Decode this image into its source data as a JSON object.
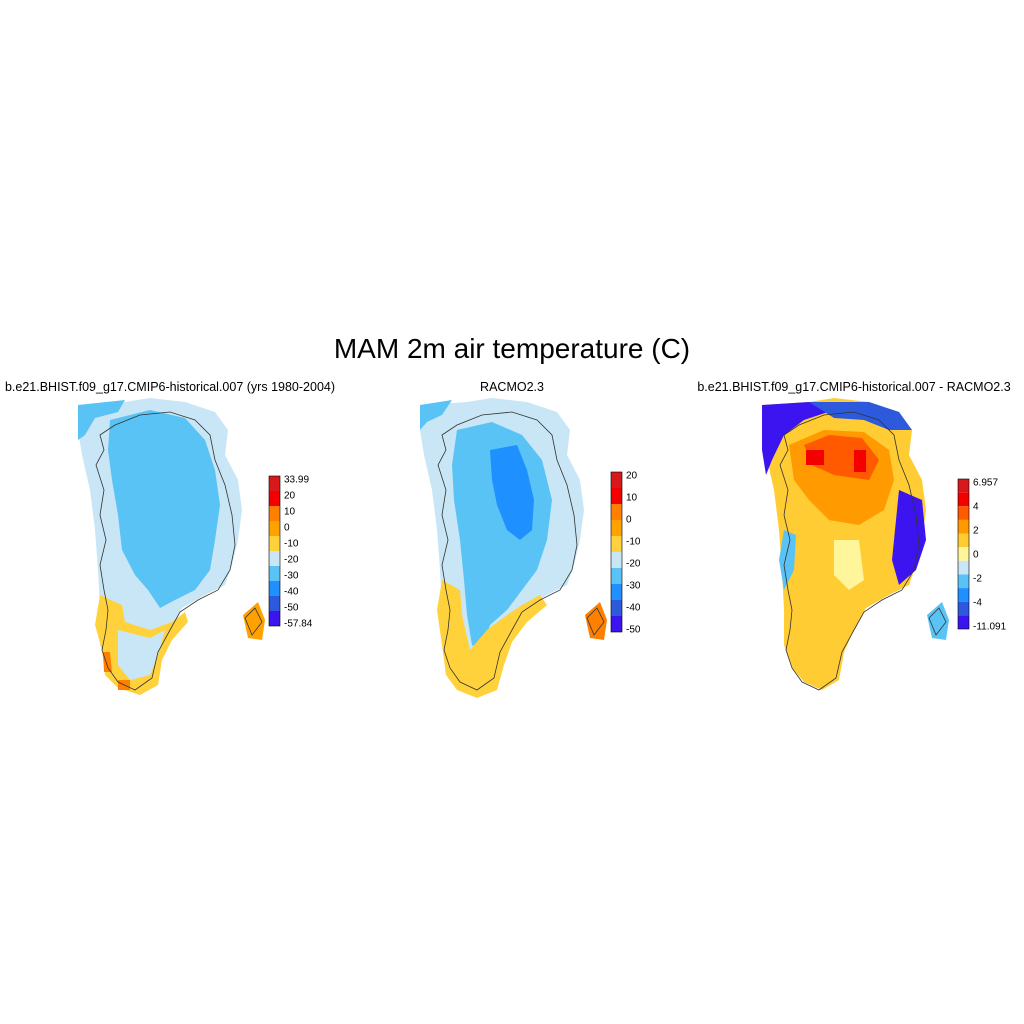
{
  "title": "MAM 2m air temperature (C)",
  "panels": [
    {
      "title": "b.e21.BHIST.f09_g17.CMIP6-historical.007 (yrs 1980-2004)",
      "colorbar": {
        "labels": [
          "33.99",
          "20",
          "10",
          "0",
          "-10",
          "-20",
          "-30",
          "-40",
          "-50",
          "-57.84"
        ],
        "colors": [
          "#d7191c",
          "#f50000",
          "#ff7f00",
          "#ffa200",
          "#ffd23c",
          "#c8e6f5",
          "#5ac3f5",
          "#1e90ff",
          "#2d5adc",
          "#3c14f0"
        ]
      }
    },
    {
      "title": "RACMO2.3",
      "colorbar": {
        "labels": [
          "20",
          "10",
          "0",
          "-10",
          "-20",
          "-30",
          "-40",
          "-50"
        ],
        "colors": [
          "#d7191c",
          "#f50000",
          "#ff7f00",
          "#ffa200",
          "#ffd23c",
          "#c8e6f5",
          "#5ac3f5",
          "#1e90ff",
          "#2d5adc",
          "#3c14f0"
        ]
      }
    },
    {
      "title": "b.e21.BHIST.f09_g17.CMIP6-historical.007 - RACMO2.3",
      "colorbar": {
        "labels": [
          "6.957",
          "4",
          "2",
          "0",
          "-2",
          "-4",
          "-11.091"
        ],
        "colors": [
          "#d7191c",
          "#f50000",
          "#ff5a00",
          "#ff9a00",
          "#ffcc33",
          "#fff59a",
          "#c8e6f5",
          "#5ac3f5",
          "#1e90ff",
          "#2d5adc",
          "#3c14f0"
        ]
      }
    }
  ]
}
